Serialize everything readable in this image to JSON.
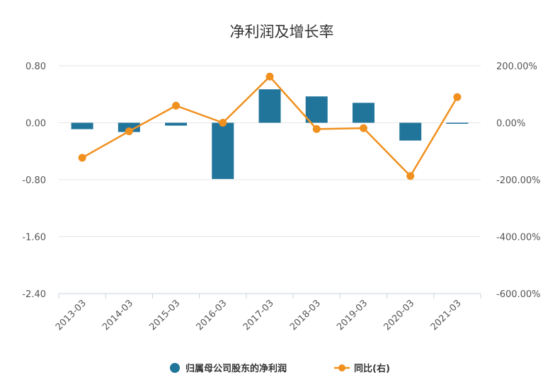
{
  "chart_data": {
    "type": "bar+line",
    "title": "净利润及增长率",
    "categories": [
      "2013-03",
      "2014-03",
      "2015-03",
      "2016-03",
      "2017-03",
      "2018-03",
      "2019-03",
      "2020-03",
      "2021-03"
    ],
    "series": [
      {
        "name": "归属母公司股东的净利润",
        "type": "bar",
        "axis": "left",
        "color": "#21759b",
        "values": [
          -0.09,
          -0.13,
          -0.04,
          -0.79,
          0.47,
          0.37,
          0.28,
          -0.25,
          -0.01
        ]
      },
      {
        "name": "同比(右)",
        "type": "line",
        "axis": "right",
        "color": "#f0901e",
        "values": [
          -123,
          -30,
          60,
          0,
          162,
          -22,
          -19,
          -187,
          90
        ]
      }
    ],
    "y_left": {
      "min": -2.4,
      "max": 0.8,
      "ticks": [
        0.8,
        0.0,
        -0.8,
        -1.6,
        -2.4
      ],
      "tick_labels": [
        "0.80",
        "0.00",
        "-0.80",
        "-1.60",
        "-2.40"
      ]
    },
    "y_right": {
      "min": -600,
      "max": 200,
      "ticks": [
        200,
        0,
        -200,
        -400,
        -600
      ],
      "tick_labels": [
        "200.00%",
        "0.00%",
        "-200.00%",
        "-400.00%",
        "-600.00%"
      ]
    },
    "grid": true,
    "legend_position": "bottom-center",
    "colors": {
      "grid": "#e6e6e6",
      "axis": "#c8d2e0"
    }
  }
}
